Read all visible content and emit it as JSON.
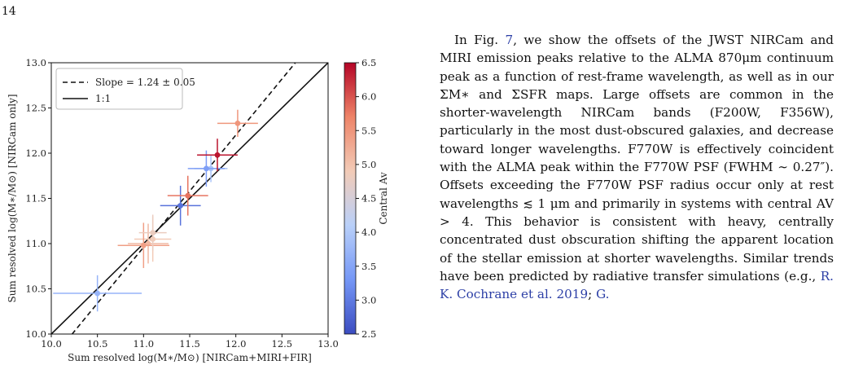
{
  "page": {
    "number": "14"
  },
  "chart_data": {
    "type": "scatter",
    "title": "",
    "xlabel": "Sum resolved log(M∗/M⊙) [NIRCam+MIRI+FIR]",
    "ylabel": "Sum resolved log(M∗/M⊙) [NIRCam only]",
    "xlim": [
      10.0,
      13.0
    ],
    "ylim": [
      10.0,
      13.0
    ],
    "xticks": [
      "10.0",
      "10.5",
      "11.0",
      "11.5",
      "12.0",
      "12.5",
      "13.0"
    ],
    "yticks": [
      "10.0",
      "10.5",
      "11.0",
      "11.5",
      "12.0",
      "12.5",
      "13.0"
    ],
    "grid": false,
    "legend_position": "top-left",
    "legend": [
      {
        "label": "Slope = 1.24 ± 0.05",
        "style": "dashed"
      },
      {
        "label": "1:1",
        "style": "solid"
      }
    ],
    "fit_line": {
      "slope": 1.24,
      "intercept": -2.68
    },
    "identity_line": {
      "slope": 1,
      "intercept": 0
    },
    "colorbar": {
      "label": "Central Av",
      "min": 2.5,
      "max": 6.5,
      "ticks": [
        "2.5",
        "3.0",
        "3.5",
        "4.0",
        "4.5",
        "5.0",
        "5.5",
        "6.0",
        "6.5"
      ],
      "colormap": [
        "#3b4cc0",
        "#7597f6",
        "#b9d0f9",
        "#f2cbb7",
        "#ee8468",
        "#b40426"
      ]
    },
    "points": [
      {
        "x": 10.5,
        "y": 10.45,
        "xerr": 0.48,
        "yerr": 0.2,
        "av": 3.7
      },
      {
        "x": 11.05,
        "y": 11.0,
        "xerr": 0.22,
        "yerr": 0.22,
        "av": 5.1
      },
      {
        "x": 11.1,
        "y": 11.05,
        "xerr": 0.2,
        "yerr": 0.25,
        "av": 4.9
      },
      {
        "x": 11.0,
        "y": 10.98,
        "xerr": 0.28,
        "yerr": 0.25,
        "av": 5.4
      },
      {
        "x": 11.1,
        "y": 11.12,
        "xerr": 0.15,
        "yerr": 0.2,
        "av": 4.8
      },
      {
        "x": 11.4,
        "y": 11.42,
        "xerr": 0.22,
        "yerr": 0.22,
        "av": 2.9
      },
      {
        "x": 11.48,
        "y": 11.53,
        "xerr": 0.22,
        "yerr": 0.22,
        "av": 5.8
      },
      {
        "x": 11.73,
        "y": 11.83,
        "xerr": 0.18,
        "yerr": 0.15,
        "av": 3.9
      },
      {
        "x": 11.68,
        "y": 11.83,
        "xerr": 0.2,
        "yerr": 0.2,
        "av": 3.4
      },
      {
        "x": 11.8,
        "y": 11.98,
        "xerr": 0.22,
        "yerr": 0.18,
        "av": 6.4
      },
      {
        "x": 12.02,
        "y": 12.33,
        "xerr": 0.22,
        "yerr": 0.15,
        "av": 5.5
      }
    ]
  },
  "text": {
    "p1": "In Fig. ",
    "ref_fig": "7",
    "p2": ", we show the offsets of the JWST NIRCam and MIRI emission peaks relative to the ALMA 870μm continuum peak as a function of rest-frame wavelength, as well as in our ΣM∗ and ΣSFR maps. Large offsets are common in the shorter-wavelength NIRCam bands (F200W, F356W), particularly in the most dust-obscured galaxies, and decrease toward longer wavelengths. F770W is effectively coincident with the ALMA peak within the F770W PSF (FWHM ∼ 0.27″). Offsets exceeding the F770W PSF radius occur only at rest wavelengths ≲ 1 μm and primarily in systems with central AV > 4. This behavior is consistent with heavy, centrally concentrated dust obscuration shifting the apparent location of the stellar emission at shorter wavelengths. Similar trends have been predicted by radiative transfer simulations (e.g., ",
    "ref_cite1": "R. K. Cochrane et al. 2019",
    "p3": "; ",
    "ref_cite2": "G."
  }
}
